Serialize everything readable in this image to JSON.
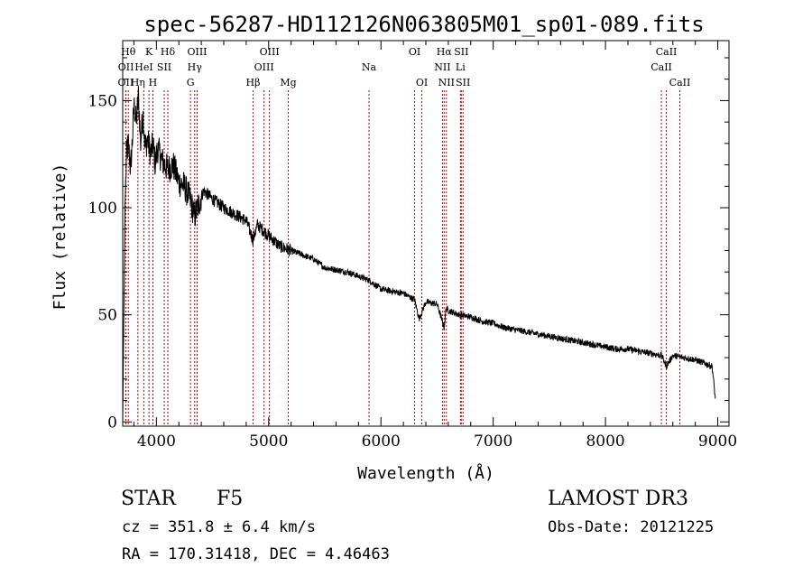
{
  "chart_data": {
    "type": "line",
    "title": "spec-56287-HD112126N063805M01_sp01-089.fits",
    "xlabel": "Wavelength (Å)",
    "ylabel": "Flux (relative)",
    "xlim": [
      3700,
      9100
    ],
    "ylim": [
      -2,
      178
    ],
    "xticks": [
      4000,
      5000,
      6000,
      7000,
      8000,
      9000
    ],
    "yticks": [
      0,
      50,
      100,
      150
    ],
    "grid": false,
    "series": [
      {
        "name": "flux",
        "x": [
          3700,
          3720,
          3735,
          3750,
          3770,
          3790,
          3800,
          3820,
          3840,
          3860,
          3880,
          3900,
          3920,
          3950,
          3970,
          3990,
          4010,
          4050,
          4100,
          4150,
          4200,
          4250,
          4300,
          4340,
          4380,
          4420,
          4500,
          4600,
          4700,
          4800,
          4861,
          4900,
          5000,
          5100,
          5200,
          5300,
          5400,
          5500,
          5600,
          5700,
          5800,
          5900,
          6000,
          6100,
          6200,
          6300,
          6340,
          6400,
          6500,
          6563,
          6580,
          6600,
          6700,
          6800,
          6900,
          7000,
          7100,
          7200,
          7300,
          7400,
          7500,
          7600,
          7700,
          7800,
          7900,
          8000,
          8100,
          8200,
          8300,
          8400,
          8500,
          8542,
          8600,
          8700,
          8800,
          8850,
          8900,
          8950,
          8980
        ],
        "y": [
          0,
          100,
          125,
          130,
          118,
          135,
          148,
          140,
          152,
          130,
          145,
          128,
          132,
          125,
          130,
          120,
          128,
          122,
          118,
          120,
          112,
          110,
          104,
          96,
          102,
          108,
          104,
          100,
          97,
          94,
          85,
          92,
          87,
          82,
          80,
          78,
          76,
          72,
          71,
          70,
          68,
          66,
          62,
          61,
          60,
          57,
          48,
          56,
          55,
          44,
          53,
          52,
          50,
          49,
          47,
          46,
          44,
          43,
          42,
          41,
          40,
          39,
          38,
          37,
          36,
          35,
          34,
          34,
          33,
          32,
          31,
          26,
          31,
          30,
          29,
          28,
          27,
          26,
          10
        ]
      }
    ],
    "lines": [
      {
        "label": "OII",
        "wl": 3727,
        "row": 2
      },
      {
        "label": "Hθ",
        "wl": 3750,
        "row": 0
      },
      {
        "label": "OII",
        "wl": 3729,
        "row": 1
      },
      {
        "label": "Hη",
        "wl": 3835,
        "row": 2
      },
      {
        "label": "HeI",
        "wl": 3889,
        "row": 1
      },
      {
        "label": "K",
        "wl": 3934,
        "row": 0
      },
      {
        "label": "H",
        "wl": 3969,
        "row": 2
      },
      {
        "label": "SII",
        "wl": 4070,
        "row": 1
      },
      {
        "label": "Hδ",
        "wl": 4102,
        "row": 0
      },
      {
        "label": "G",
        "wl": 4304,
        "row": 2
      },
      {
        "label": "Hγ",
        "wl": 4341,
        "row": 1
      },
      {
        "label": "OIII",
        "wl": 4363,
        "row": 0
      },
      {
        "label": "Hβ",
        "wl": 4861,
        "row": 2
      },
      {
        "label": "OIII",
        "wl": 4959,
        "row": 1
      },
      {
        "label": "OIII",
        "wl": 5007,
        "row": 0
      },
      {
        "label": "Mg",
        "wl": 5175,
        "row": 2
      },
      {
        "label": "Na",
        "wl": 5894,
        "row": 1
      },
      {
        "label": "OI",
        "wl": 6300,
        "row": 0
      },
      {
        "label": "OI",
        "wl": 6364,
        "row": 2
      },
      {
        "label": "NII",
        "wl": 6548,
        "row": 1
      },
      {
        "label": "Hα",
        "wl": 6563,
        "row": 0
      },
      {
        "label": "NII",
        "wl": 6583,
        "row": 2
      },
      {
        "label": "SII",
        "wl": 6716,
        "row": 0
      },
      {
        "label": "Li",
        "wl": 6708,
        "row": 1
      },
      {
        "label": "SII",
        "wl": 6731,
        "row": 2
      },
      {
        "label": "CaII",
        "wl": 8498,
        "row": 1
      },
      {
        "label": "CaII",
        "wl": 8542,
        "row": 0
      },
      {
        "label": "CaII",
        "wl": 8662,
        "row": 2
      }
    ]
  },
  "info": {
    "object_class": "STAR",
    "subclass": "F5",
    "survey": "LAMOST DR3",
    "cz": "cz = 351.8 ± 6.4 km/s",
    "obs_date": "Obs-Date: 20121225",
    "coords": "RA = 170.31418, DEC =   4.46463"
  }
}
